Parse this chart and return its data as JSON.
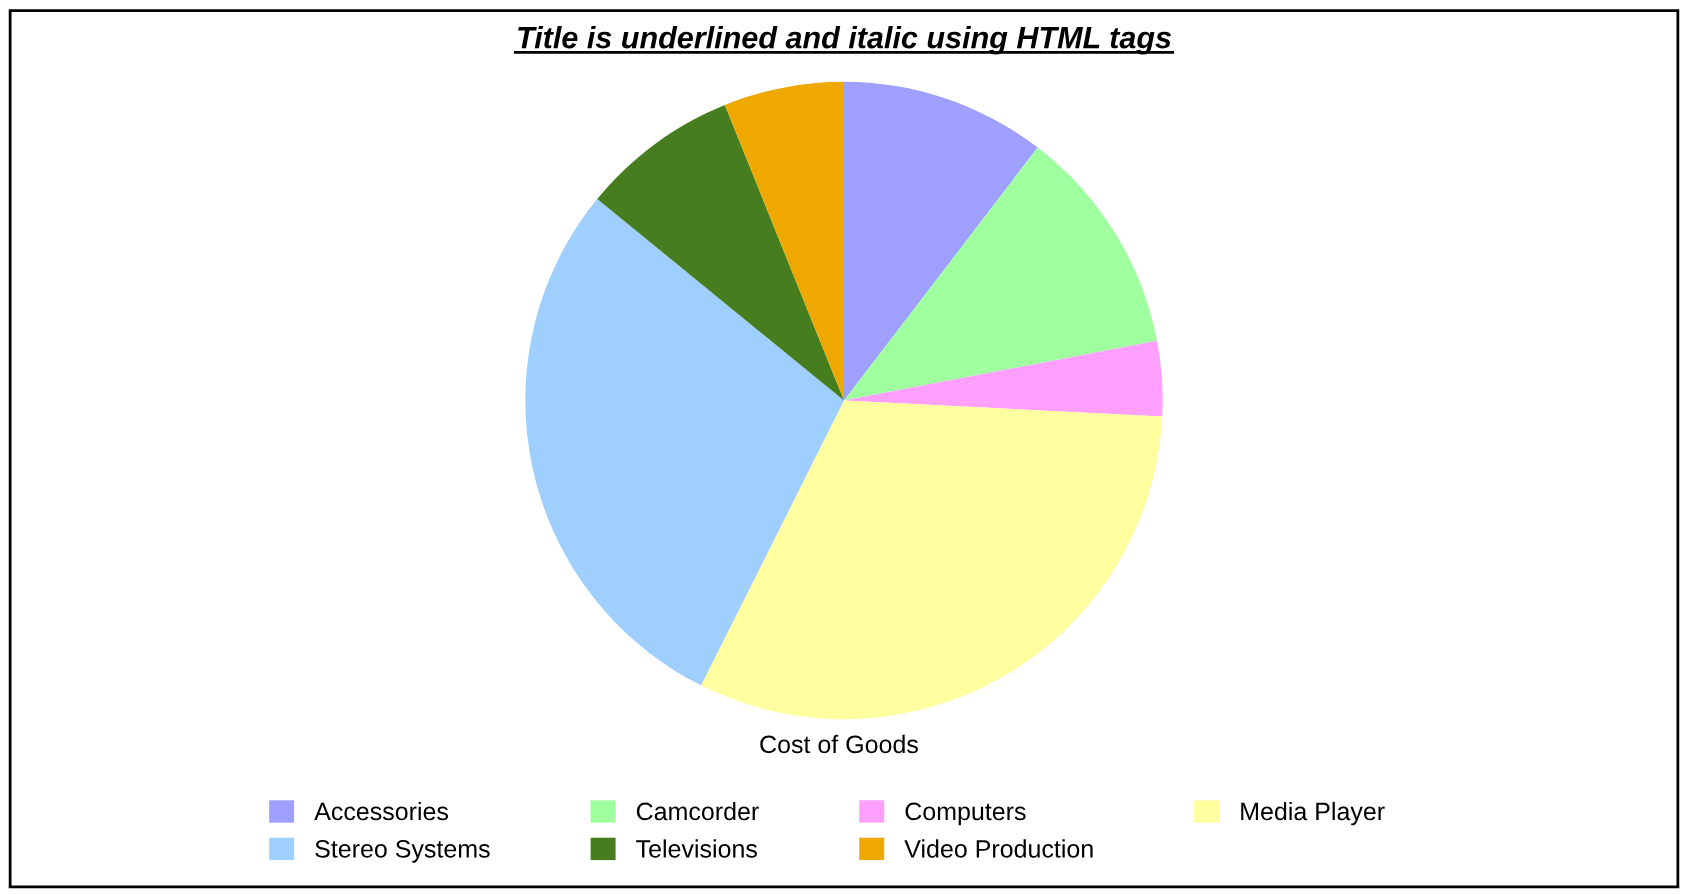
{
  "chart_data": {
    "type": "pie",
    "title": "Title is underlined and italic using HTML tags",
    "xlabel": "Cost of Goods",
    "categories": [
      "Accessories",
      "Camcorder",
      "Computers",
      "Media Player",
      "Stereo Systems",
      "Televisions",
      "Video Production"
    ],
    "values": [
      10.4,
      11.6,
      3.8,
      31.6,
      28.5,
      8.0,
      6.1
    ],
    "colors": [
      "#9f9fff",
      "#9fff9f",
      "#ff9fff",
      "#ffff9f",
      "#9fcfff",
      "#467d1e",
      "#eea800"
    ],
    "legend": "bottom"
  }
}
